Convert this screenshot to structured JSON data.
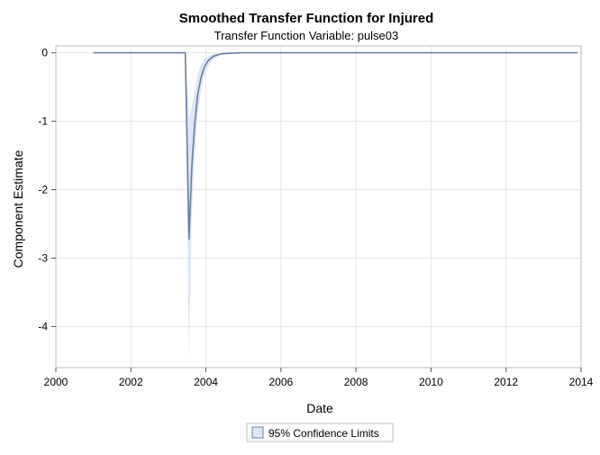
{
  "chart_data": {
    "type": "line",
    "title": "Smoothed Transfer Function for Injured",
    "subtitle": "Transfer Function Variable: pulse03",
    "xlabel": "Date",
    "ylabel": "Component Estimate",
    "xlim": [
      2000,
      2014
    ],
    "ylim": [
      -4.6,
      0.1
    ],
    "x_ticks": [
      "2000",
      "2002",
      "2004",
      "2006",
      "2008",
      "2010",
      "2012",
      "2014"
    ],
    "y_ticks": [
      "0",
      "-1",
      "-2",
      "-3",
      "-4"
    ],
    "grid": true,
    "legend": {
      "position": "bottom-center",
      "entries": [
        "95% Confidence Limits"
      ]
    },
    "colors": {
      "line": "#6a7fa0",
      "band": "#dbe6f3",
      "grid": "#e6e6e6",
      "frame": "#bdbdbd"
    },
    "series": [
      {
        "x": [
          2001.0,
          2002.0,
          2003.0,
          2003.45,
          2003.55,
          2003.62,
          2003.7,
          2003.78,
          2003.86,
          2003.95,
          2004.05,
          2004.2,
          2004.4,
          2004.7,
          2005.0,
          2006.0,
          2008.0,
          2010.0,
          2012.0,
          2013.9
        ],
        "values": [
          0,
          0,
          0,
          0,
          -2.72,
          -1.7,
          -1.05,
          -0.62,
          -0.38,
          -0.22,
          -0.12,
          -0.05,
          -0.015,
          -0.005,
          0,
          0,
          0,
          0,
          0,
          0
        ],
        "lower": [
          0,
          0,
          0,
          0,
          -4.5,
          -2.4,
          -1.5,
          -0.92,
          -0.58,
          -0.35,
          -0.2,
          -0.09,
          -0.03,
          -0.01,
          0,
          0,
          0,
          0,
          0,
          0
        ],
        "upper": [
          0,
          0,
          0,
          0,
          -0.95,
          -0.8,
          -0.55,
          -0.32,
          -0.18,
          -0.1,
          -0.05,
          -0.02,
          -0.005,
          0,
          0,
          0,
          0,
          0,
          0,
          0
        ]
      }
    ]
  }
}
